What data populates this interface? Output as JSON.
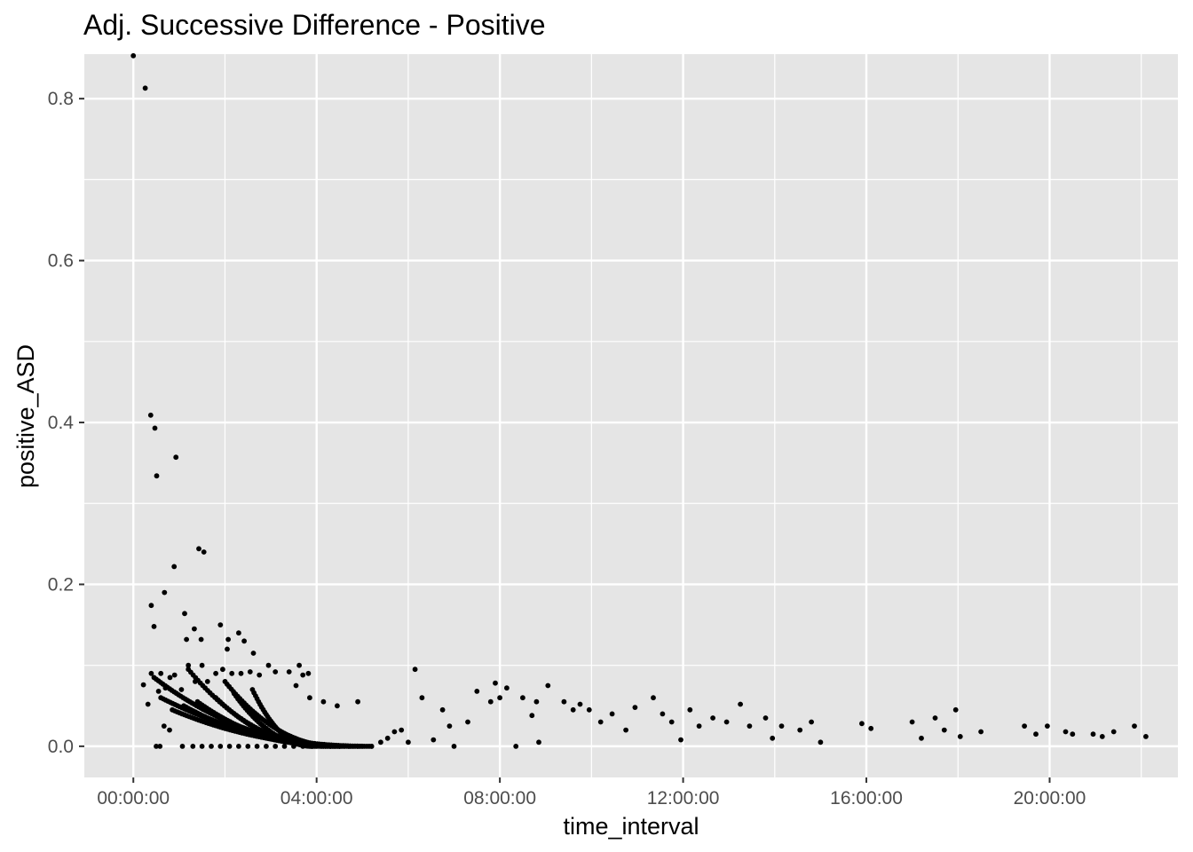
{
  "chart_data": {
    "type": "scatter",
    "title": "Adj. Successive Difference - Positive",
    "xlabel": "time_interval",
    "ylabel": "positive_ASD",
    "x_unit": "hours",
    "xlim": [
      -1.07,
      22.8
    ],
    "ylim": [
      -0.0385,
      0.855
    ],
    "x_ticks": [
      {
        "value": 0,
        "label": "00:00:00"
      },
      {
        "value": 4,
        "label": "04:00:00"
      },
      {
        "value": 8,
        "label": "08:00:00"
      },
      {
        "value": 12,
        "label": "12:00:00"
      },
      {
        "value": 16,
        "label": "16:00:00"
      },
      {
        "value": 20,
        "label": "20:00:00"
      }
    ],
    "y_ticks": [
      {
        "value": 0.0,
        "label": "0.0"
      },
      {
        "value": 0.2,
        "label": "0.2"
      },
      {
        "value": 0.4,
        "label": "0.4"
      },
      {
        "value": 0.6,
        "label": "0.6"
      },
      {
        "value": 0.8,
        "label": "0.8"
      }
    ],
    "grid": true,
    "panel_color": "#e5e5e5",
    "grid_color": "#ffffff",
    "point_color": "#000000",
    "points": [
      [
        0.0,
        0.853
      ],
      [
        0.26,
        0.813
      ],
      [
        0.38,
        0.409
      ],
      [
        0.47,
        0.393
      ],
      [
        0.51,
        0.334
      ],
      [
        0.93,
        0.357
      ],
      [
        1.43,
        0.244
      ],
      [
        1.54,
        0.24
      ],
      [
        0.89,
        0.222
      ],
      [
        0.68,
        0.19
      ],
      [
        0.39,
        0.174
      ],
      [
        0.45,
        0.148
      ],
      [
        1.12,
        0.164
      ],
      [
        1.33,
        0.145
      ],
      [
        1.16,
        0.132
      ],
      [
        1.48,
        0.132
      ],
      [
        1.9,
        0.15
      ],
      [
        2.07,
        0.132
      ],
      [
        2.05,
        0.12
      ],
      [
        2.3,
        0.14
      ],
      [
        2.42,
        0.13
      ],
      [
        2.62,
        0.115
      ],
      [
        3.62,
        0.1
      ],
      [
        3.82,
        0.09
      ],
      [
        0.22,
        0.076
      ],
      [
        0.32,
        0.052
      ],
      [
        0.39,
        0.09
      ],
      [
        0.55,
        0.068
      ],
      [
        0.6,
        0.09
      ],
      [
        0.7,
        0.072
      ],
      [
        0.8,
        0.085
      ],
      [
        0.9,
        0.088
      ],
      [
        1.05,
        0.07
      ],
      [
        1.2,
        0.1
      ],
      [
        1.35,
        0.08
      ],
      [
        1.5,
        0.1
      ],
      [
        1.62,
        0.08
      ],
      [
        1.8,
        0.09
      ],
      [
        1.95,
        0.095
      ],
      [
        2.15,
        0.09
      ],
      [
        2.35,
        0.09
      ],
      [
        2.55,
        0.092
      ],
      [
        2.75,
        0.088
      ],
      [
        2.95,
        0.1
      ],
      [
        3.1,
        0.092
      ],
      [
        3.4,
        0.092
      ],
      [
        3.55,
        0.075
      ],
      [
        3.7,
        0.088
      ],
      [
        3.85,
        0.06
      ],
      [
        4.15,
        0.055
      ],
      [
        4.45,
        0.05
      ],
      [
        4.9,
        0.055
      ],
      [
        0.5,
        0.0
      ],
      [
        0.58,
        0.0
      ],
      [
        0.67,
        0.025
      ],
      [
        0.79,
        0.02
      ],
      [
        1.07,
        0.0
      ],
      [
        1.3,
        0.0
      ],
      [
        1.5,
        0.0
      ],
      [
        1.7,
        0.0
      ],
      [
        1.9,
        0.0
      ],
      [
        2.1,
        0.0
      ],
      [
        2.3,
        0.0
      ],
      [
        2.5,
        0.0
      ],
      [
        2.7,
        0.0
      ],
      [
        2.9,
        0.0
      ],
      [
        3.1,
        0.0
      ],
      [
        3.3,
        0.0
      ],
      [
        3.5,
        0.0
      ],
      [
        3.7,
        0.0
      ],
      [
        3.9,
        0.0
      ],
      [
        4.1,
        0.0
      ],
      [
        4.3,
        0.0
      ],
      [
        4.5,
        0.0
      ],
      [
        4.7,
        0.0
      ],
      [
        4.9,
        0.0
      ],
      [
        5.2,
        0.0
      ],
      [
        5.4,
        0.005
      ],
      [
        5.55,
        0.01
      ],
      [
        5.7,
        0.018
      ],
      [
        5.85,
        0.02
      ],
      [
        6.0,
        0.005
      ],
      [
        6.15,
        0.095
      ],
      [
        6.3,
        0.06
      ],
      [
        6.55,
        0.008
      ],
      [
        6.75,
        0.045
      ],
      [
        6.9,
        0.025
      ],
      [
        7.0,
        0.0
      ],
      [
        7.3,
        0.03
      ],
      [
        7.5,
        0.068
      ],
      [
        7.8,
        0.055
      ],
      [
        7.9,
        0.078
      ],
      [
        8.0,
        0.06
      ],
      [
        8.15,
        0.072
      ],
      [
        8.35,
        0.0
      ],
      [
        8.5,
        0.06
      ],
      [
        8.7,
        0.038
      ],
      [
        8.8,
        0.055
      ],
      [
        8.85,
        0.005
      ],
      [
        9.05,
        0.075
      ],
      [
        9.4,
        0.055
      ],
      [
        9.6,
        0.045
      ],
      [
        9.75,
        0.052
      ],
      [
        9.95,
        0.045
      ],
      [
        10.2,
        0.03
      ],
      [
        10.45,
        0.04
      ],
      [
        10.75,
        0.02
      ],
      [
        10.95,
        0.048
      ],
      [
        11.35,
        0.06
      ],
      [
        11.55,
        0.04
      ],
      [
        11.75,
        0.03
      ],
      [
        11.95,
        0.008
      ],
      [
        12.15,
        0.045
      ],
      [
        12.35,
        0.025
      ],
      [
        12.65,
        0.035
      ],
      [
        12.95,
        0.03
      ],
      [
        13.25,
        0.052
      ],
      [
        13.45,
        0.025
      ],
      [
        13.8,
        0.035
      ],
      [
        13.95,
        0.01
      ],
      [
        14.15,
        0.025
      ],
      [
        14.55,
        0.02
      ],
      [
        14.8,
        0.03
      ],
      [
        15.0,
        0.005
      ],
      [
        15.9,
        0.028
      ],
      [
        16.1,
        0.022
      ],
      [
        17.0,
        0.03
      ],
      [
        17.2,
        0.01
      ],
      [
        17.5,
        0.035
      ],
      [
        17.7,
        0.02
      ],
      [
        17.95,
        0.045
      ],
      [
        18.05,
        0.012
      ],
      [
        18.5,
        0.018
      ],
      [
        19.45,
        0.025
      ],
      [
        19.7,
        0.015
      ],
      [
        19.95,
        0.025
      ],
      [
        20.35,
        0.018
      ],
      [
        20.5,
        0.015
      ],
      [
        20.95,
        0.015
      ],
      [
        21.15,
        0.012
      ],
      [
        21.4,
        0.018
      ],
      [
        21.85,
        0.025
      ],
      [
        22.1,
        0.012
      ]
    ],
    "curve_clusters": [
      {
        "x_start": 0.45,
        "x_end": 4.8,
        "y_start": 0.085,
        "y_end": 0.0,
        "count": 90
      },
      {
        "x_start": 0.6,
        "x_end": 5.2,
        "y_start": 0.06,
        "y_end": 0.0,
        "count": 90
      },
      {
        "x_start": 0.85,
        "x_end": 5.0,
        "y_start": 0.045,
        "y_end": 0.0,
        "count": 80
      },
      {
        "x_start": 1.1,
        "x_end": 4.6,
        "y_start": 0.05,
        "y_end": 0.0,
        "count": 70
      },
      {
        "x_start": 1.4,
        "x_end": 4.4,
        "y_start": 0.055,
        "y_end": 0.0,
        "count": 60
      },
      {
        "x_start": 1.8,
        "x_end": 4.2,
        "y_start": 0.06,
        "y_end": 0.0,
        "count": 50
      },
      {
        "x_start": 2.2,
        "x_end": 4.0,
        "y_start": 0.065,
        "y_end": 0.0,
        "count": 45
      },
      {
        "x_start": 2.6,
        "x_end": 3.9,
        "y_start": 0.07,
        "y_end": 0.0,
        "count": 40
      },
      {
        "x_start": 1.2,
        "x_end": 4.3,
        "y_start": 0.095,
        "y_end": 0.0,
        "count": 60
      },
      {
        "x_start": 2.0,
        "x_end": 4.5,
        "y_start": 0.08,
        "y_end": 0.0,
        "count": 55
      }
    ]
  }
}
